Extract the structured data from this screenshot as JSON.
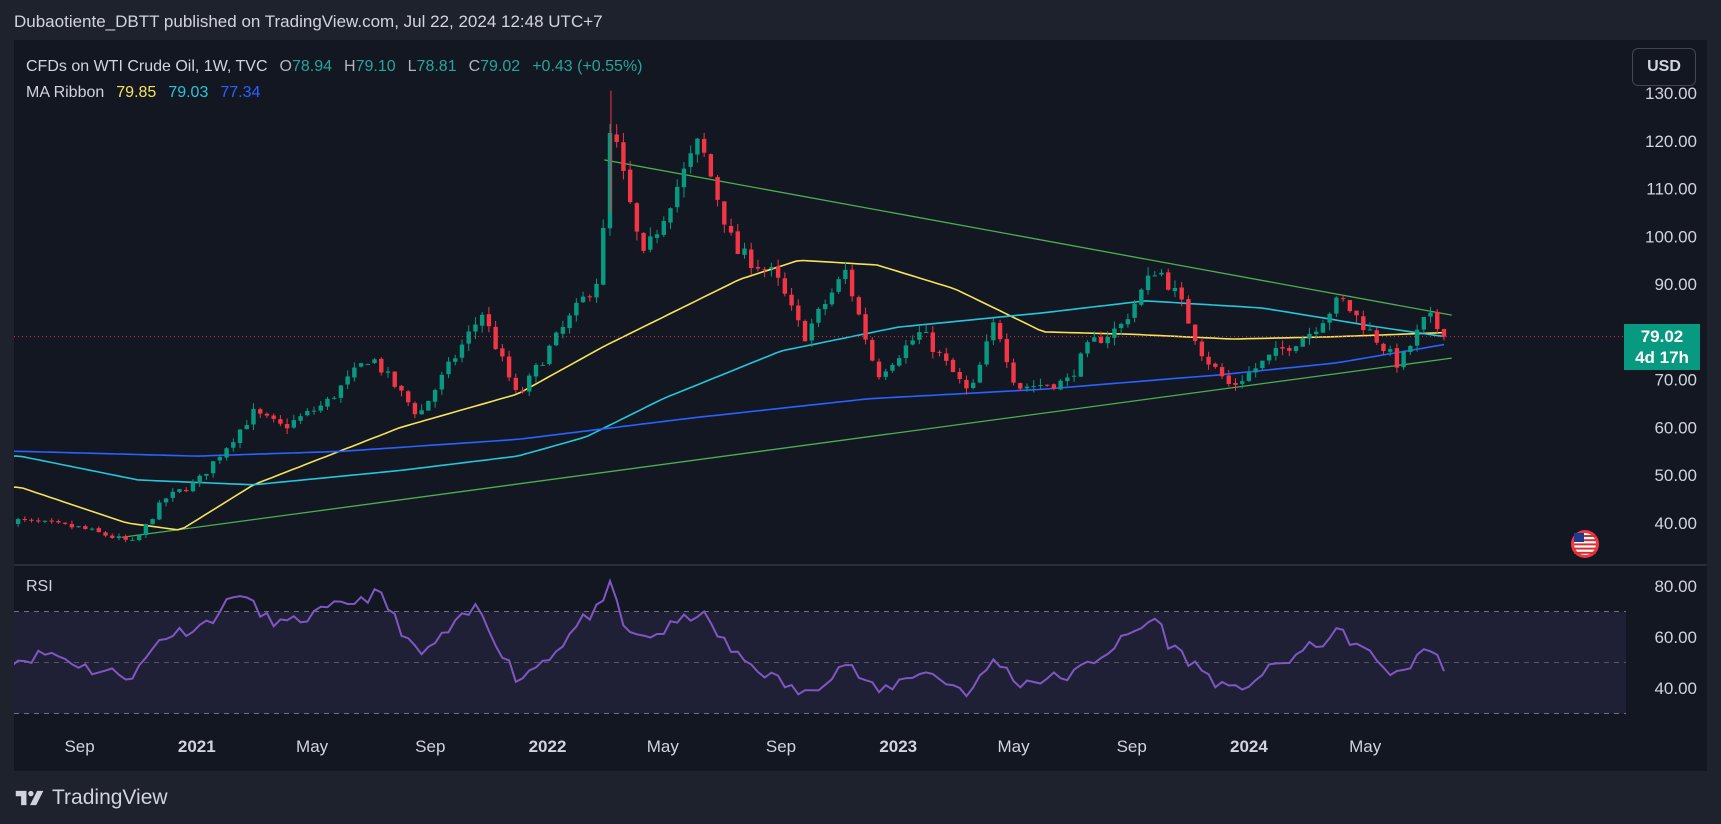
{
  "header": {
    "caption": "Dubaotiente_DBTT published on TradingView.com, Jul 22, 2024 12:48 UTC+7"
  },
  "legend": {
    "symbol": "CFDs on WTI Crude Oil, 1W, TVC",
    "o_label": "O",
    "o_value": "78.94",
    "h_label": "H",
    "h_value": "79.10",
    "l_label": "L",
    "l_value": "78.81",
    "c_label": "C",
    "c_value": "79.02",
    "change": "+0.43 (+0.55%)",
    "ma_label": "MA Ribbon",
    "ma_values": [
      "79.85",
      "79.03",
      "77.34"
    ]
  },
  "currency_button": "USD",
  "price_tag": {
    "price": "79.02",
    "countdown": "4d 17h"
  },
  "rsi_label": "RSI",
  "brand": "TradingView",
  "colors": {
    "background": "#131722",
    "up": "#089981",
    "down": "#f23645",
    "ma_short": "#f5e35a",
    "ma_mid": "#26c6da",
    "ma_long": "#2962ff",
    "trendline": "#4caf50",
    "rsi_line": "#7e57c2"
  },
  "chart_data": [
    {
      "type": "candlestick",
      "title": "CFDs on WTI Crude Oil, 1W, TVC",
      "x_ticks": [
        "Sep",
        "2021",
        "May",
        "Sep",
        "2022",
        "May",
        "Sep",
        "2023",
        "May",
        "Sep",
        "2024",
        "May"
      ],
      "y_ticks": [
        "130.00",
        "120.00",
        "110.00",
        "100.00",
        "90.00",
        "80.00",
        "70.00",
        "60.00",
        "50.00",
        "40.00"
      ],
      "ylim": [
        32,
        133
      ],
      "close_anchors": [
        [
          "2020-07-01",
          40.5
        ],
        [
          "2020-09-01",
          39
        ],
        [
          "2020-10-28",
          35.8
        ],
        [
          "2020-11-28",
          45
        ],
        [
          "2021-01-01",
          48.5
        ],
        [
          "2021-03-01",
          63
        ],
        [
          "2021-04-01",
          60
        ],
        [
          "2021-05-15",
          65
        ],
        [
          "2021-07-01",
          75
        ],
        [
          "2021-08-20",
          62.5
        ],
        [
          "2021-10-25",
          84
        ],
        [
          "2021-12-01",
          66
        ],
        [
          "2022-01-01",
          76
        ],
        [
          "2022-02-25",
          92
        ],
        [
          "2022-03-08",
          123.7
        ],
        [
          "2022-04-10",
          95
        ],
        [
          "2022-05-10",
          108
        ],
        [
          "2022-06-08",
          120
        ],
        [
          "2022-07-15",
          97
        ],
        [
          "2022-08-25",
          92
        ],
        [
          "2022-09-25",
          79
        ],
        [
          "2022-11-07",
          92.6
        ],
        [
          "2022-12-10",
          71
        ],
        [
          "2023-01-25",
          80
        ],
        [
          "2023-03-17",
          66.7
        ],
        [
          "2023-04-12",
          82.5
        ],
        [
          "2023-05-04",
          68.5
        ],
        [
          "2023-06-25",
          69.5
        ],
        [
          "2023-07-20",
          77.5
        ],
        [
          "2023-08-20",
          81
        ],
        [
          "2023-09-27",
          93.7
        ],
        [
          "2023-10-20",
          87
        ],
        [
          "2023-11-15",
          75
        ],
        [
          "2023-12-13",
          68.5
        ],
        [
          "2024-01-25",
          75
        ],
        [
          "2024-03-05",
          80
        ],
        [
          "2024-04-05",
          86.9
        ],
        [
          "2024-05-15",
          78
        ],
        [
          "2024-06-05",
          73
        ],
        [
          "2024-07-05",
          83.5
        ],
        [
          "2024-07-22",
          79.02
        ]
      ],
      "ma_ribbon": [
        {
          "name": "MA Ribbon",
          "color": "#f5e35a",
          "last": 79.85,
          "points": [
            [
              "2020-07-01",
              47.5
            ],
            [
              "2020-10-20",
              40
            ],
            [
              "2020-12-15",
              38.5
            ],
            [
              "2021-03-01",
              48
            ],
            [
              "2021-08-01",
              60
            ],
            [
              "2021-12-01",
              67
            ],
            [
              "2022-03-01",
              77
            ],
            [
              "2022-07-20",
              91
            ],
            [
              "2022-09-20",
              95
            ],
            [
              "2022-12-10",
              94
            ],
            [
              "2023-03-01",
              89
            ],
            [
              "2023-06-01",
              80
            ],
            [
              "2023-09-01",
              79.5
            ],
            [
              "2023-12-15",
              78.5
            ],
            [
              "2024-04-01",
              79
            ],
            [
              "2024-07-22",
              79.85
            ]
          ]
        },
        {
          "name": "MA Ribbon",
          "color": "#26c6da",
          "last": 79.03,
          "points": [
            [
              "2020-07-01",
              54
            ],
            [
              "2020-11-01",
              49
            ],
            [
              "2021-03-01",
              48
            ],
            [
              "2021-08-01",
              51
            ],
            [
              "2021-12-01",
              54
            ],
            [
              "2022-02-10",
              58
            ],
            [
              "2022-05-01",
              66
            ],
            [
              "2022-09-01",
              76
            ],
            [
              "2023-01-01",
              81
            ],
            [
              "2023-06-01",
              84
            ],
            [
              "2023-09-15",
              86.5
            ],
            [
              "2024-01-15",
              85
            ],
            [
              "2024-05-15",
              81
            ],
            [
              "2024-07-22",
              79.03
            ]
          ]
        },
        {
          "name": "MA Ribbon",
          "color": "#2962ff",
          "last": 77.34,
          "points": [
            [
              "2020-07-01",
              55
            ],
            [
              "2021-01-01",
              54
            ],
            [
              "2021-06-01",
              55
            ],
            [
              "2021-12-01",
              57.5
            ],
            [
              "2022-06-01",
              62
            ],
            [
              "2022-12-01",
              66
            ],
            [
              "2023-06-01",
              68
            ],
            [
              "2023-12-01",
              71
            ],
            [
              "2024-04-01",
              73.5
            ],
            [
              "2024-07-22",
              77.34
            ]
          ]
        }
      ],
      "trendlines": [
        [
          [
            "2022-03-01",
            116
          ],
          [
            "2024-07-30",
            83.5
          ]
        ],
        [
          [
            "2020-10-15",
            37
          ],
          [
            "2024-07-30",
            74.5
          ]
        ]
      ],
      "last_price": 79.02
    },
    {
      "type": "line",
      "title": "RSI",
      "y_ticks": [
        "80.00",
        "60.00",
        "40.00"
      ],
      "ylim": [
        27,
        83
      ],
      "band": [
        30,
        70
      ],
      "midline": 50,
      "series": [
        {
          "points": [
            [
              "2020-07-01",
              51
            ],
            [
              "2020-08-01",
              54
            ],
            [
              "2020-09-15",
              47
            ],
            [
              "2020-10-28",
              45
            ],
            [
              "2020-11-25",
              60
            ],
            [
              "2021-01-10",
              65
            ],
            [
              "2021-02-15",
              78
            ],
            [
              "2021-03-10",
              68
            ],
            [
              "2021-04-05",
              65
            ],
            [
              "2021-06-20",
              75
            ],
            [
              "2021-07-10",
              77
            ],
            [
              "2021-08-20",
              52
            ],
            [
              "2021-10-20",
              72
            ],
            [
              "2021-12-01",
              43
            ],
            [
              "2022-01-10",
              55
            ],
            [
              "2022-02-10",
              68
            ],
            [
              "2022-03-01",
              72
            ],
            [
              "2022-03-08",
              82
            ],
            [
              "2022-03-25",
              60
            ],
            [
              "2022-04-25",
              61
            ],
            [
              "2022-06-08",
              70
            ],
            [
              "2022-07-15",
              53
            ],
            [
              "2022-09-25",
              37
            ],
            [
              "2022-11-07",
              50
            ],
            [
              "2022-12-10",
              38
            ],
            [
              "2023-01-25",
              47
            ],
            [
              "2023-03-17",
              38
            ],
            [
              "2023-04-12",
              52
            ],
            [
              "2023-05-04",
              42
            ],
            [
              "2023-07-01",
              45
            ],
            [
              "2023-09-27",
              68
            ],
            [
              "2023-10-10",
              57
            ],
            [
              "2023-12-13",
              38
            ],
            [
              "2024-02-10",
              51
            ],
            [
              "2024-04-05",
              62
            ],
            [
              "2024-06-05",
              44
            ],
            [
              "2024-07-01",
              56
            ],
            [
              "2024-07-22",
              49
            ]
          ]
        }
      ]
    }
  ]
}
